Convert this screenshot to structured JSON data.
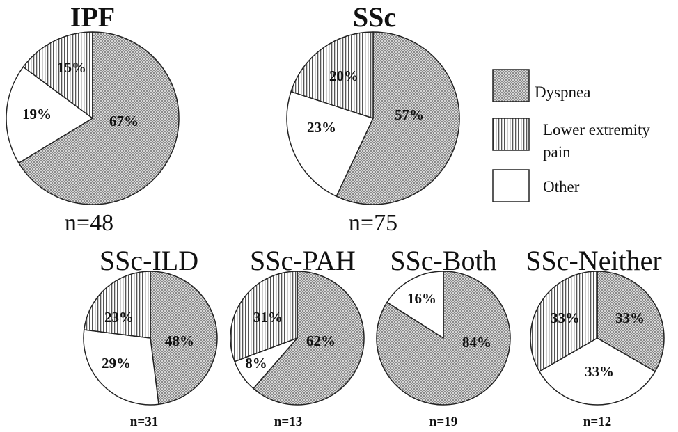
{
  "chart_data": [
    {
      "type": "pie",
      "title": "IPF",
      "n_label": "n=48",
      "slices": [
        {
          "category": "Dyspnea",
          "value": 67,
          "label": "67%"
        },
        {
          "category": "Other",
          "value": 19,
          "label": "19%"
        },
        {
          "category": "Lower extremity pain",
          "value": 15,
          "label": "15%"
        }
      ]
    },
    {
      "type": "pie",
      "title": "SSc",
      "n_label": "n=75",
      "slices": [
        {
          "category": "Dyspnea",
          "value": 57,
          "label": "57%"
        },
        {
          "category": "Other",
          "value": 23,
          "label": "23%"
        },
        {
          "category": "Lower extremity pain",
          "value": 20,
          "label": "20%"
        }
      ]
    },
    {
      "type": "pie",
      "title": "SSc-ILD",
      "n_label": "n=31",
      "slices": [
        {
          "category": "Dyspnea",
          "value": 48,
          "label": "48%"
        },
        {
          "category": "Other",
          "value": 29,
          "label": "29%"
        },
        {
          "category": "Lower extremity pain",
          "value": 23,
          "label": "23%"
        }
      ]
    },
    {
      "type": "pie",
      "title": "SSc-PAH",
      "n_label": "n=13",
      "slices": [
        {
          "category": "Dyspnea",
          "value": 62,
          "label": "62%"
        },
        {
          "category": "Other",
          "value": 8,
          "label": "8%"
        },
        {
          "category": "Lower extremity pain",
          "value": 31,
          "label": "31%"
        }
      ]
    },
    {
      "type": "pie",
      "title": "SSc-Both",
      "n_label": "n=19",
      "slices": [
        {
          "category": "Dyspnea",
          "value": 84,
          "label": "84%"
        },
        {
          "category": "Other",
          "value": 16,
          "label": "16%"
        }
      ]
    },
    {
      "type": "pie",
      "title": "SSc-Neither",
      "n_label": "n=12",
      "slices": [
        {
          "category": "Dyspnea",
          "value": 33,
          "label": "33%"
        },
        {
          "category": "Other",
          "value": 33,
          "label": "33%"
        },
        {
          "category": "Lower extremity pain",
          "value": 33,
          "label": "33%"
        }
      ]
    }
  ],
  "legend": [
    {
      "category": "Dyspnea",
      "label": "Dyspnea",
      "lines": [
        "Dyspnea"
      ],
      "pattern": "dots"
    },
    {
      "category": "Lower extremity pain",
      "label": "Lower extremity pain",
      "lines": [
        "Lower extremity",
        "pain"
      ],
      "pattern": "vlines"
    },
    {
      "category": "Other",
      "label": "Other",
      "lines": [
        "Other"
      ],
      "pattern": "white"
    }
  ],
  "colors": {
    "stroke": "#222222",
    "dot": "#555555",
    "dot_bg": "#d6d6d6",
    "line": "#555555",
    "white": "#ffffff"
  }
}
